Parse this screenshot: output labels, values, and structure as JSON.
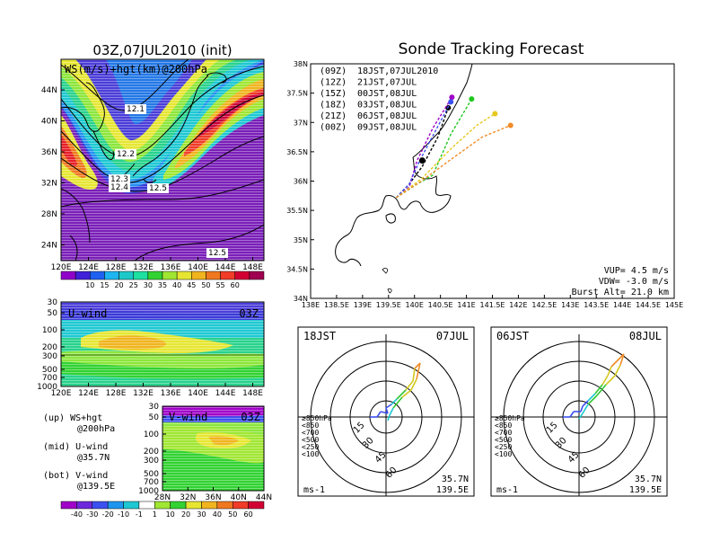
{
  "titles": {
    "left": "03Z,07JUL2010 (init)",
    "right": "Sonde Tracking Forecast"
  },
  "map_panel": {
    "label": "WS(m/s)+hgt(km)@200hPa",
    "lat_ticks": [
      "44N",
      "40N",
      "36N",
      "32N",
      "28N",
      "24N"
    ],
    "lon_ticks": [
      "120E",
      "124E",
      "128E",
      "132E",
      "136E",
      "140E",
      "144E",
      "148E"
    ],
    "contour_labels": [
      "12.1",
      "12.2",
      "12.3",
      "12.4",
      "12.5",
      "12.5"
    ],
    "colorbar_ticks": [
      "10",
      "15",
      "20",
      "25",
      "30",
      "35",
      "40",
      "45",
      "50",
      "55",
      "60"
    ],
    "colorbar_colors": [
      "#8f00c8",
      "#4020d8",
      "#2060f0",
      "#1eb4f0",
      "#1ec8c8",
      "#1ee0a0",
      "#32d232",
      "#a0e632",
      "#e6e632",
      "#f0b41e",
      "#f07820",
      "#f03c28",
      "#d20032",
      "#a00050"
    ]
  },
  "u_panel": {
    "label": "U-wind",
    "time": "03Z",
    "p_ticks": [
      "30",
      "50",
      "100",
      "200",
      "300",
      "500",
      "700",
      "1000"
    ],
    "lon_ticks": [
      "120E",
      "124E",
      "128E",
      "132E",
      "136E",
      "140E",
      "144E",
      "148E"
    ]
  },
  "v_panel": {
    "label": "V-wind",
    "time": "03Z",
    "p_ticks": [
      "30",
      "50",
      "100",
      "200",
      "300",
      "500",
      "700",
      "1000"
    ],
    "lat_ticks": [
      "28N",
      "32N",
      "36N",
      "40N",
      "44N"
    ]
  },
  "panel_legend": {
    "up1": "(up) WS+hgt",
    "up2": "@200hPa",
    "mid1": "(mid) U-wind",
    "mid2": "@35.7N",
    "bot1": "(bot) V-wind",
    "bot2": "@139.5E"
  },
  "bottom_colorbar": {
    "ticks": [
      "-40",
      "-30",
      "-20",
      "-10",
      "-1",
      "1",
      "10",
      "20",
      "30",
      "40",
      "50",
      "60"
    ],
    "colors": [
      "#a000c8",
      "#6e28dc",
      "#3c50f0",
      "#1e96f0",
      "#1ec8d2",
      "#ffffff",
      "#a0e632",
      "#32d232",
      "#e6e632",
      "#f0b41e",
      "#f07820",
      "#f03c28",
      "#d20032"
    ]
  },
  "track_panel": {
    "legend": [
      {
        "run": "(09Z)",
        "time": "18JST,07JUL2010",
        "color": "#000000"
      },
      {
        "run": "(12Z)",
        "time": "21JST,07JUL",
        "color": "#a000c8"
      },
      {
        "run": "(15Z)",
        "time": "00JST,08JUL",
        "color": "#3c50f0"
      },
      {
        "run": "(18Z)",
        "time": "03JST,08JUL",
        "color": "#1ec81e"
      },
      {
        "run": "(21Z)",
        "time": "06JST,08JUL",
        "color": "#e6c81e"
      },
      {
        "run": "(00Z)",
        "time": "09JST,08JUL",
        "color": "#f08c28"
      }
    ],
    "lat_ticks": [
      "38N",
      "37.5N",
      "37N",
      "36.5N",
      "36N",
      "35.5N",
      "35N",
      "34.5N",
      "34N"
    ],
    "lon_ticks": [
      "138E",
      "138.5E",
      "139E",
      "139.5E",
      "140E",
      "140.5E",
      "141E",
      "141.5E",
      "142E",
      "142.5E",
      "143E",
      "143.5E",
      "144E",
      "144.5E",
      "145E"
    ],
    "params": [
      "VUP= 4.5 m/s",
      "VDW= -3.0 m/s",
      "Burst Alt= 21.0 km"
    ]
  },
  "hodo_left": {
    "title_left": "18JST",
    "title_right": "07JUL",
    "ring_labels": [
      "15",
      "30",
      "45",
      "60"
    ],
    "legend": [
      {
        "text": "≥850hPa",
        "color": "#e02828"
      },
      {
        "text": "<850",
        "color": "#f08c28"
      },
      {
        "text": "<700",
        "color": "#d2c81e"
      },
      {
        "text": "<500",
        "color": "#32c832"
      },
      {
        "text": "<250",
        "color": "#1ec8d2"
      },
      {
        "text": "<100",
        "color": "#3c50f0"
      }
    ],
    "unit": "ms-1",
    "loc1": "35.7N",
    "loc2": "139.5E"
  },
  "hodo_right": {
    "title_left": "06JST",
    "title_right": "08JUL",
    "ring_labels": [
      "15",
      "30",
      "45",
      "60"
    ],
    "legend": [
      {
        "text": "≥850hPa",
        "color": "#e02828"
      },
      {
        "text": "<850",
        "color": "#f08c28"
      },
      {
        "text": "<700",
        "color": "#d2c81e"
      },
      {
        "text": "<500",
        "color": "#32c832"
      },
      {
        "text": "<250",
        "color": "#1ec8d2"
      },
      {
        "text": "<100",
        "color": "#3c50f0"
      }
    ],
    "unit": "ms-1",
    "loc1": "35.7N",
    "loc2": "139.5E"
  },
  "chart_data": [
    {
      "type": "heatmap",
      "title": "03Z,07JUL2010 (init)",
      "subtitle": "WS(m/s)+hgt(km)@200hPa",
      "xlim": [
        120,
        150
      ],
      "ylim": [
        22,
        46
      ],
      "jet_core_wind_ms": 60
    },
    {
      "type": "line",
      "title": "Sonde Tracking Forecast",
      "xlim": [
        138,
        145
      ],
      "ylim": [
        34,
        38
      ],
      "series": [
        {
          "name": "(09Z) 18JST,07JUL2010",
          "x": [
            139.65,
            139.9,
            140.15,
            140.45,
            140.65
          ],
          "y": [
            35.72,
            35.95,
            36.25,
            36.75,
            37.25
          ]
        },
        {
          "name": "(12Z) 21JST,07JUL",
          "x": [
            139.65,
            139.9,
            140.05,
            140.35,
            140.72
          ],
          "y": [
            35.72,
            35.9,
            36.35,
            36.9,
            37.43
          ]
        },
        {
          "name": "(15Z) 00JST,08JUL",
          "x": [
            139.65,
            139.9,
            140.1,
            140.4,
            140.7
          ],
          "y": [
            35.72,
            35.95,
            36.35,
            36.85,
            37.35
          ]
        },
        {
          "name": "(18Z) 03JST,08JUL",
          "x": [
            139.65,
            140.05,
            140.35,
            140.7,
            141.1
          ],
          "y": [
            35.72,
            35.95,
            36.1,
            36.8,
            37.4
          ]
        },
        {
          "name": "(21Z) 06JST,08JUL",
          "x": [
            139.65,
            140.15,
            140.7,
            141.2,
            141.55
          ],
          "y": [
            35.72,
            36.05,
            36.55,
            36.95,
            37.15
          ]
        },
        {
          "name": "(00Z) 09JST,08JUL",
          "x": [
            139.65,
            140.1,
            140.75,
            141.3,
            141.85
          ],
          "y": [
            35.72,
            35.98,
            36.4,
            36.75,
            36.95
          ]
        }
      ]
    }
  ]
}
